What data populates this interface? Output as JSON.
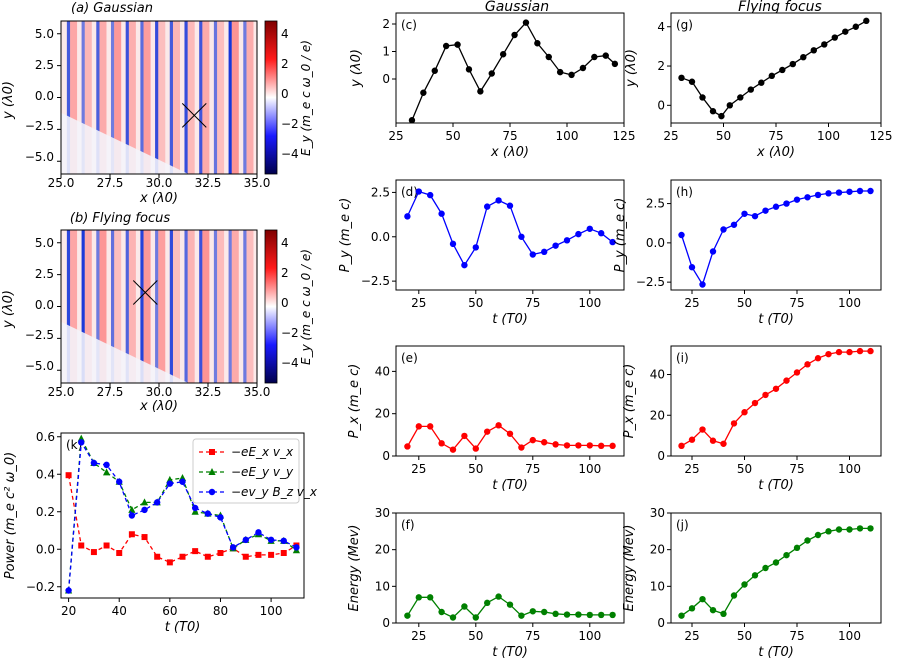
{
  "figure": {
    "column_titles": [
      "Gaussian",
      "Flying focus"
    ],
    "colorbar_ticks": [
      "4",
      "2",
      "0",
      "−2",
      "−4"
    ],
    "colorbar_label": "E_y (m_e c ω_0 / e)",
    "field_maps": [
      {
        "title": "(a) Gaussian",
        "xlabel": "x (λ0)",
        "ylabel": "y (λ0)",
        "xticks": [
          "25.0",
          "27.5",
          "30.0",
          "32.5",
          "35.0"
        ],
        "yticks": [
          "5.0",
          "2.5",
          "0.0",
          "−2.5",
          "−5.0"
        ]
      },
      {
        "title": "(b) Flying focus",
        "xlabel": "x (λ0)",
        "ylabel": "y (λ0)",
        "xticks": [
          "25.0",
          "27.5",
          "30.0",
          "32.5",
          "35.0"
        ],
        "yticks": [
          "5.0",
          "2.5",
          "0.0",
          "−2.5",
          "−5.0"
        ]
      }
    ]
  },
  "chart_data": [
    {
      "id": "a",
      "type": "heatmap",
      "title": "(a) Gaussian",
      "xlabel": "x (λ0)",
      "ylabel": "y (λ0)",
      "xlim": [
        25,
        35
      ],
      "ylim": [
        -6,
        6
      ],
      "clim": [
        -5,
        5
      ],
      "colormap": "seismic",
      "marker": {
        "shape": "x",
        "x": 31.8,
        "y": -1.4
      }
    },
    {
      "id": "b",
      "type": "heatmap",
      "title": "(b) Flying focus",
      "xlabel": "x (λ0)",
      "ylabel": "y (λ0)",
      "xlim": [
        25,
        35
      ],
      "ylim": [
        -6,
        6
      ],
      "clim": [
        -5,
        5
      ],
      "colormap": "seismic",
      "marker": {
        "shape": "x",
        "x": 29.3,
        "y": 1.1
      }
    },
    {
      "id": "k",
      "type": "line",
      "label": "(k)",
      "xlabel": "t (T0)",
      "ylabel": "Power (m_e c² ω_0)",
      "xlim": [
        17,
        113
      ],
      "ylim": [
        -0.26,
        0.62
      ],
      "xticks": [
        20,
        40,
        60,
        80,
        100
      ],
      "yticks": [
        -0.2,
        0.0,
        0.2,
        0.4,
        0.6
      ],
      "x": [
        20,
        25,
        30,
        35,
        40,
        45,
        50,
        55,
        60,
        65,
        70,
        75,
        80,
        85,
        90,
        95,
        100,
        105,
        110
      ],
      "legend": "top-right",
      "series": [
        {
          "name": "−eE_x v_x",
          "color": "#ff0000",
          "marker": "square",
          "values": [
            0.395,
            0.02,
            -0.015,
            0.02,
            -0.02,
            0.08,
            0.065,
            -0.04,
            -0.07,
            -0.04,
            -0.01,
            -0.04,
            -0.02,
            0.005,
            -0.04,
            -0.03,
            -0.03,
            -0.02,
            0.02
          ]
        },
        {
          "name": "−eE_y v_y",
          "color": "#008000",
          "marker": "triangle",
          "values": [
            -0.22,
            0.59,
            0.46,
            0.41,
            0.36,
            0.21,
            0.25,
            0.25,
            0.37,
            0.38,
            0.2,
            0.19,
            0.18,
            0.005,
            0.05,
            0.08,
            0.045,
            0.045,
            -0.005
          ]
        },
        {
          "name": "−ev_y B_z v_x",
          "color": "#0000ff",
          "marker": "circle",
          "values": [
            -0.22,
            0.57,
            0.46,
            0.45,
            0.36,
            0.18,
            0.21,
            0.25,
            0.35,
            0.36,
            0.22,
            0.19,
            0.17,
            0.01,
            0.05,
            0.09,
            0.05,
            0.045,
            0.01
          ]
        }
      ]
    },
    {
      "id": "c",
      "type": "line",
      "label": "(c)",
      "xlabel": "x (λ0)",
      "ylabel": "y (λ0)",
      "xlim": [
        25,
        125
      ],
      "ylim": [
        -1.6,
        2.4
      ],
      "xticks": [
        25,
        50,
        75,
        100,
        125
      ],
      "yticks": [
        0,
        1,
        2
      ],
      "series": [
        {
          "color": "#000000",
          "x": [
            32,
            37,
            42,
            47,
            52,
            57,
            62,
            67,
            72,
            77,
            82,
            87,
            92,
            97,
            102,
            107,
            112,
            117,
            121
          ],
          "values": [
            -1.5,
            -0.5,
            0.3,
            1.2,
            1.25,
            0.35,
            -0.45,
            0.2,
            0.9,
            1.6,
            2.05,
            1.3,
            0.8,
            0.25,
            0.15,
            0.4,
            0.8,
            0.85,
            0.55
          ]
        }
      ]
    },
    {
      "id": "g",
      "type": "line",
      "label": "(g)",
      "xlabel": "x (λ0)",
      "ylabel": "y (λ0)",
      "xlim": [
        25,
        125
      ],
      "ylim": [
        -0.9,
        4.7
      ],
      "xticks": [
        25,
        50,
        75,
        100,
        125
      ],
      "yticks": [
        0,
        2,
        4
      ],
      "series": [
        {
          "color": "#000000",
          "x": [
            30,
            35,
            40,
            45,
            49,
            53,
            58,
            63,
            68,
            73,
            78,
            83,
            88,
            93,
            98,
            103,
            108,
            113,
            118
          ],
          "values": [
            1.4,
            1.2,
            0.4,
            -0.3,
            -0.55,
            0.0,
            0.4,
            0.8,
            1.15,
            1.5,
            1.8,
            2.1,
            2.45,
            2.8,
            3.1,
            3.45,
            3.75,
            4.0,
            4.3
          ]
        }
      ]
    },
    {
      "id": "d",
      "type": "line",
      "label": "(d)",
      "xlabel": "t (T0)",
      "ylabel": "P_y (m_e c)",
      "xlim": [
        15,
        115
      ],
      "ylim": [
        -3.0,
        3.2
      ],
      "xticks": [
        25,
        50,
        75,
        100
      ],
      "yticks": [
        -2.5,
        0.0,
        2.5
      ],
      "series": [
        {
          "color": "#0000ff",
          "x": [
            20,
            25,
            30,
            35,
            40,
            45,
            50,
            55,
            60,
            65,
            70,
            75,
            80,
            85,
            90,
            95,
            100,
            105,
            110
          ],
          "values": [
            1.15,
            2.55,
            2.35,
            1.3,
            -0.4,
            -1.6,
            -0.6,
            1.7,
            2.05,
            1.75,
            0.0,
            -1.0,
            -0.85,
            -0.5,
            -0.2,
            0.15,
            0.45,
            0.2,
            -0.3
          ]
        }
      ]
    },
    {
      "id": "h",
      "type": "line",
      "label": "(h)",
      "xlabel": "t (T0)",
      "ylabel": "P_y (m_e c)",
      "xlim": [
        15,
        115
      ],
      "ylim": [
        -3.0,
        4.0
      ],
      "xticks": [
        25,
        50,
        75,
        100
      ],
      "yticks": [
        -2.5,
        0.0,
        2.5
      ],
      "series": [
        {
          "color": "#0000ff",
          "x": [
            20,
            25,
            30,
            35,
            40,
            45,
            50,
            55,
            60,
            65,
            70,
            75,
            80,
            85,
            90,
            95,
            100,
            105,
            110
          ],
          "values": [
            0.5,
            -1.55,
            -2.65,
            -0.55,
            0.85,
            1.15,
            1.85,
            1.7,
            2.05,
            2.3,
            2.5,
            2.75,
            2.9,
            3.05,
            3.15,
            3.2,
            3.25,
            3.3,
            3.3
          ]
        }
      ]
    },
    {
      "id": "e",
      "type": "line",
      "label": "(e)",
      "xlabel": "t (T0)",
      "ylabel": "P_x (m_e c)",
      "xlim": [
        15,
        115
      ],
      "ylim": [
        0,
        52
      ],
      "xticks": [
        25,
        50,
        75,
        100
      ],
      "yticks": [
        0,
        20,
        40
      ],
      "series": [
        {
          "color": "#ff0000",
          "x": [
            20,
            25,
            30,
            35,
            40,
            45,
            50,
            55,
            60,
            65,
            70,
            75,
            80,
            85,
            90,
            95,
            100,
            105,
            110
          ],
          "values": [
            4.5,
            14,
            14,
            6,
            3,
            9.5,
            3.5,
            11.5,
            14.5,
            10.5,
            4,
            7.5,
            6.5,
            5.5,
            5,
            5,
            5,
            4.8,
            4.8
          ]
        }
      ]
    },
    {
      "id": "i",
      "type": "line",
      "label": "(i)",
      "xlabel": "t (T0)",
      "ylabel": "P_x (m_e c)",
      "xlim": [
        15,
        115
      ],
      "ylim": [
        0,
        54
      ],
      "xticks": [
        25,
        50,
        75,
        100
      ],
      "yticks": [
        0,
        20,
        40
      ],
      "series": [
        {
          "color": "#ff0000",
          "x": [
            20,
            25,
            30,
            35,
            40,
            45,
            50,
            55,
            60,
            65,
            70,
            75,
            80,
            85,
            90,
            95,
            100,
            105,
            110
          ],
          "values": [
            5,
            8,
            13,
            7.5,
            6,
            16,
            21.5,
            26,
            30,
            33,
            37,
            41,
            45,
            48,
            50,
            51,
            51,
            51.5,
            51.5
          ]
        }
      ]
    },
    {
      "id": "f",
      "type": "line",
      "label": "(f)",
      "xlabel": "t (T0)",
      "ylabel": "Energy (Mev)",
      "xlim": [
        15,
        115
      ],
      "ylim": [
        0,
        30
      ],
      "xticks": [
        25,
        50,
        75,
        100
      ],
      "yticks": [
        0,
        10,
        20,
        30
      ],
      "series": [
        {
          "color": "#008000",
          "x": [
            20,
            25,
            30,
            35,
            40,
            45,
            50,
            55,
            60,
            65,
            70,
            75,
            80,
            85,
            90,
            95,
            100,
            105,
            110
          ],
          "values": [
            2,
            7,
            7,
            3,
            1.5,
            4.5,
            1.5,
            5.5,
            7.2,
            5,
            2,
            3.2,
            3,
            2.5,
            2.3,
            2.3,
            2.2,
            2.2,
            2.2
          ]
        }
      ]
    },
    {
      "id": "j",
      "type": "line",
      "label": "(j)",
      "xlabel": "t (T0)",
      "ylabel": "Energy (Mev)",
      "xlim": [
        15,
        115
      ],
      "ylim": [
        0,
        30
      ],
      "xticks": [
        25,
        50,
        75,
        100
      ],
      "yticks": [
        0,
        10,
        20,
        30
      ],
      "series": [
        {
          "color": "#008000",
          "x": [
            20,
            25,
            30,
            35,
            40,
            45,
            50,
            55,
            60,
            65,
            70,
            75,
            80,
            85,
            90,
            95,
            100,
            105,
            110
          ],
          "values": [
            2,
            4,
            6.5,
            3.5,
            2.5,
            7.5,
            10.5,
            13,
            15,
            16.5,
            18.5,
            20.5,
            22.5,
            24,
            25,
            25.5,
            25.5,
            25.8,
            25.8
          ]
        }
      ]
    }
  ]
}
